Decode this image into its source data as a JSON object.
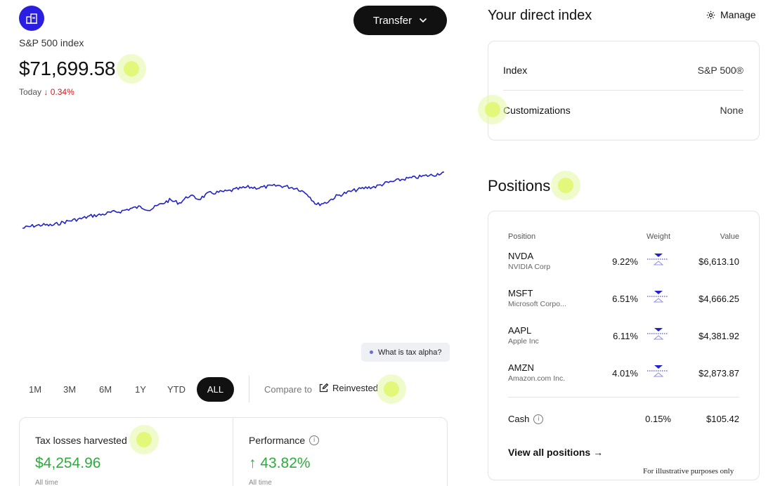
{
  "header": {
    "index_name": "S&P 500 index",
    "balance": "$71,699.58",
    "today_label": "Today",
    "today_arrow": "↓",
    "today_change": "0.34%",
    "transfer_label": "Transfer"
  },
  "chart_data": {
    "type": "line",
    "title": "",
    "xlabel": "",
    "ylabel": "",
    "color": "#2222cc",
    "x_range": "ALL",
    "series": [
      {
        "values": [
          0.0,
          0.04,
          0.06,
          0.05,
          0.1,
          0.14,
          0.17,
          0.22,
          0.24,
          0.28,
          0.3,
          0.35,
          0.38,
          0.33,
          0.42,
          0.5,
          0.45,
          0.58,
          0.52,
          0.62,
          0.64,
          0.66,
          0.7,
          0.73,
          0.72,
          0.74,
          0.76,
          0.74,
          0.71,
          0.62,
          0.42,
          0.46,
          0.57,
          0.63,
          0.68,
          0.72,
          0.74,
          0.8,
          0.84,
          0.88,
          0.9,
          0.93,
          0.95,
          1.0
        ]
      }
    ]
  },
  "tax_alpha_label": "What is tax alpha?",
  "ranges": [
    "1M",
    "3M",
    "6M",
    "1Y",
    "YTD",
    "ALL"
  ],
  "compare": {
    "label": "Compare to",
    "option": "Reinvested"
  },
  "stats": {
    "tax_losses_label": "Tax losses harvested",
    "tax_losses_value": "$4,254.96",
    "tax_losses_sub": "All time",
    "performance_label": "Performance",
    "performance_value": "↑ 43.82%",
    "performance_sub": "All time",
    "value_color": "#2eab3c"
  },
  "direct_index": {
    "title": "Your direct index",
    "manage_label": "Manage",
    "rows": [
      {
        "label": "Index",
        "value": "S&P 500®"
      },
      {
        "label": "Customizations",
        "value": "None"
      }
    ]
  },
  "positions": {
    "title": "Positions",
    "headers": {
      "position": "Position",
      "weight": "Weight",
      "value": "Value"
    },
    "rows": [
      {
        "symbol": "NVDA",
        "name": "NVIDIA Corp",
        "weight": "9.22%",
        "value": "$6,613.10"
      },
      {
        "symbol": "MSFT",
        "name": "Microsoft Corpo...",
        "weight": "6.51%",
        "value": "$4,666.25"
      },
      {
        "symbol": "AAPL",
        "name": "Apple Inc",
        "weight": "6.11%",
        "value": "$4,381.92"
      },
      {
        "symbol": "AMZN",
        "name": "Amazon.com Inc.",
        "weight": "4.01%",
        "value": "$2,873.87"
      }
    ],
    "cash": {
      "label": "Cash",
      "weight": "0.15%",
      "value": "$105.42"
    },
    "view_all_label": "View all positions →",
    "footnote": "For illustrative purposes only"
  },
  "icons": [
    "building-icon",
    "chevron-down-icon",
    "gear-icon",
    "edit-icon",
    "info-icon",
    "weight-indicator-icon"
  ],
  "accent_color": "#2a1fe0"
}
